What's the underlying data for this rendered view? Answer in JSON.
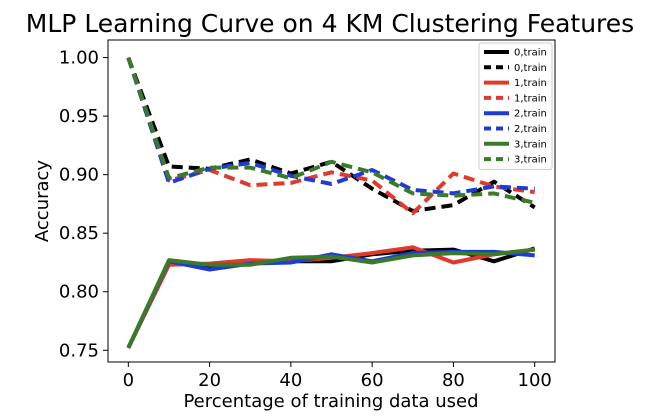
{
  "chart_data": {
    "type": "line",
    "title": "MLP Learning Curve on 4 KM Clustering Features",
    "xlabel": "Percentage of training data used",
    "ylabel": "Accuracy",
    "xlim": [
      -5,
      105
    ],
    "ylim": [
      0.74,
      1.015
    ],
    "xticks": [
      0,
      20,
      40,
      60,
      80,
      100
    ],
    "xtick_labels": [
      "0",
      "20",
      "40",
      "60",
      "80",
      "100"
    ],
    "yticks": [
      0.75,
      0.8,
      0.85,
      0.9,
      0.95,
      1.0
    ],
    "ytick_labels": [
      "0.75",
      "0.80",
      "0.85",
      "0.90",
      "0.95",
      "1.00"
    ],
    "grid": false,
    "legend_position": "top-right",
    "x": [
      0,
      10,
      20,
      30,
      40,
      50,
      60,
      70,
      80,
      90,
      100
    ],
    "series": [
      {
        "name": "0,train",
        "color": "#000000",
        "dash": "solid",
        "values": [
          0.752,
          0.825,
          0.822,
          0.824,
          0.826,
          0.826,
          0.832,
          0.835,
          0.836,
          0.826,
          0.837
        ]
      },
      {
        "name": "0,train",
        "color": "#000000",
        "dash": "dashed",
        "values": [
          1.0,
          0.907,
          0.905,
          0.913,
          0.901,
          0.911,
          0.888,
          0.869,
          0.874,
          0.894,
          0.872
        ]
      },
      {
        "name": "1,train",
        "color": "#e03a2e",
        "dash": "solid",
        "values": [
          0.752,
          0.823,
          0.824,
          0.827,
          0.826,
          0.829,
          0.833,
          0.838,
          0.825,
          0.832,
          0.836
        ]
      },
      {
        "name": "1,train",
        "color": "#e03a2e",
        "dash": "dashed",
        "values": [
          1.0,
          0.895,
          0.904,
          0.891,
          0.893,
          0.902,
          0.895,
          0.867,
          0.901,
          0.89,
          0.885
        ]
      },
      {
        "name": "2,train",
        "color": "#1f3bd6",
        "dash": "solid",
        "values": [
          0.752,
          0.826,
          0.819,
          0.824,
          0.825,
          0.832,
          0.826,
          0.833,
          0.834,
          0.834,
          0.831
        ]
      },
      {
        "name": "2,train",
        "color": "#1f3bd6",
        "dash": "dashed",
        "values": [
          1.0,
          0.893,
          0.905,
          0.91,
          0.899,
          0.892,
          0.904,
          0.887,
          0.884,
          0.89,
          0.888
        ]
      },
      {
        "name": "3,train",
        "color": "#3a7a2a",
        "dash": "solid",
        "values": [
          0.752,
          0.827,
          0.823,
          0.823,
          0.829,
          0.83,
          0.825,
          0.831,
          0.833,
          0.832,
          0.836
        ]
      },
      {
        "name": "3,train",
        "color": "#3a7a2a",
        "dash": "dashed",
        "values": [
          1.0,
          0.897,
          0.906,
          0.906,
          0.897,
          0.911,
          0.902,
          0.884,
          0.882,
          0.884,
          0.876
        ]
      }
    ]
  }
}
